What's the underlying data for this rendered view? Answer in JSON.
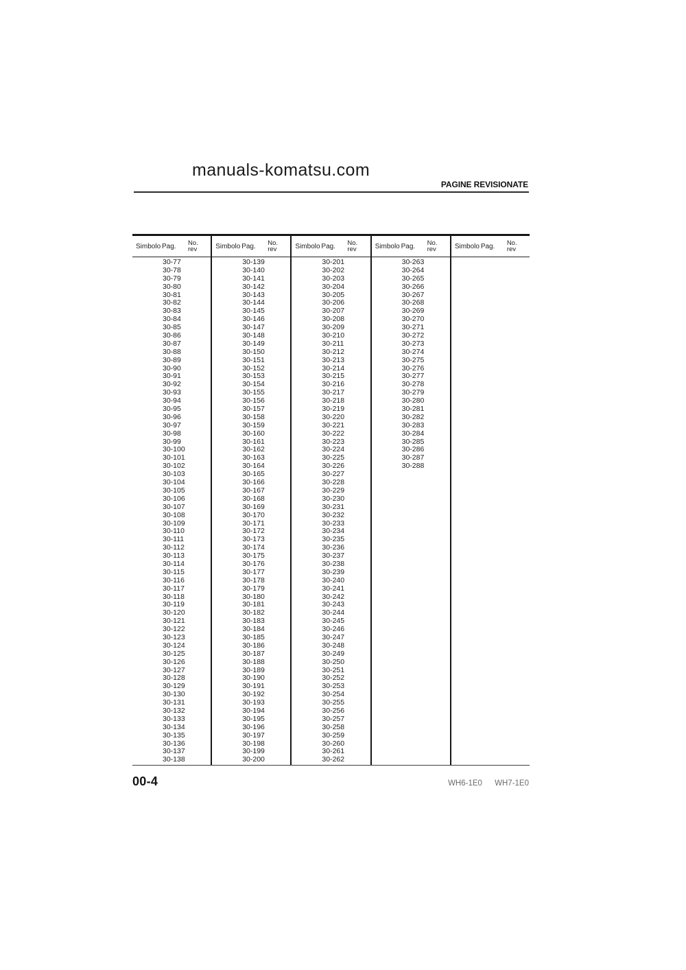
{
  "header": {
    "site_title": "manuals-komatsu.com",
    "page_title": "PAGINE REVISIONATE"
  },
  "table": {
    "headers": {
      "simbolo": "Simbolo",
      "pag": "Pag.",
      "no": "No.",
      "rev": "rev"
    },
    "columns": [
      {
        "pages": [
          "30-77",
          "30-78",
          "30-79",
          "30-80",
          "30-81",
          "30-82",
          "30-83",
          "30-84",
          "30-85",
          "30-86",
          "30-87",
          "30-88",
          "30-89",
          "30-90",
          "30-91",
          "30-92",
          "30-93",
          "30-94",
          "30-95",
          "30-96",
          "30-97",
          "30-98",
          "30-99",
          "30-100",
          "30-101",
          "30-102",
          "30-103",
          "30-104",
          "30-105",
          "30-106",
          "30-107",
          "30-108",
          "30-109",
          "30-110",
          "30-111",
          "30-112",
          "30-113",
          "30-114",
          "30-115",
          "30-116",
          "30-117",
          "30-118",
          "30-119",
          "30-120",
          "30-121",
          "30-122",
          "30-123",
          "30-124",
          "30-125",
          "30-126",
          "30-127",
          "30-128",
          "30-129",
          "30-130",
          "30-131",
          "30-132",
          "30-133",
          "30-134",
          "30-135",
          "30-136",
          "30-137",
          "30-138"
        ]
      },
      {
        "pages": [
          "30-139",
          "30-140",
          "30-141",
          "30-142",
          "30-143",
          "30-144",
          "30-145",
          "30-146",
          "30-147",
          "30-148",
          "30-149",
          "30-150",
          "30-151",
          "30-152",
          "30-153",
          "30-154",
          "30-155",
          "30-156",
          "30-157",
          "30-158",
          "30-159",
          "30-160",
          "30-161",
          "30-162",
          "30-163",
          "30-164",
          "30-165",
          "30-166",
          "30-167",
          "30-168",
          "30-169",
          "30-170",
          "30-171",
          "30-172",
          "30-173",
          "30-174",
          "30-175",
          "30-176",
          "30-177",
          "30-178",
          "30-179",
          "30-180",
          "30-181",
          "30-182",
          "30-183",
          "30-184",
          "30-185",
          "30-186",
          "30-187",
          "30-188",
          "30-189",
          "30-190",
          "30-191",
          "30-192",
          "30-193",
          "30-194",
          "30-195",
          "30-196",
          "30-197",
          "30-198",
          "30-199",
          "30-200"
        ]
      },
      {
        "pages": [
          "30-201",
          "30-202",
          "30-203",
          "30-204",
          "30-205",
          "30-206",
          "30-207",
          "30-208",
          "30-209",
          "30-210",
          "30-211",
          "30-212",
          "30-213",
          "30-214",
          "30-215",
          "30-216",
          "30-217",
          "30-218",
          "30-219",
          "30-220",
          "30-221",
          "30-222",
          "30-223",
          "30-224",
          "30-225",
          "30-226",
          "30-227",
          "30-228",
          "30-229",
          "30-230",
          "30-231",
          "30-232",
          "30-233",
          "30-234",
          "30-235",
          "30-236",
          "30-237",
          "30-238",
          "30-239",
          "30-240",
          "30-241",
          "30-242",
          "30-243",
          "30-244",
          "30-245",
          "30-246",
          "30-247",
          "30-248",
          "30-249",
          "30-250",
          "30-251",
          "30-252",
          "30-253",
          "30-254",
          "30-255",
          "30-256",
          "30-257",
          "30-258",
          "30-259",
          "30-260",
          "30-261",
          "30-262"
        ]
      },
      {
        "pages": [
          "30-263",
          "30-264",
          "30-265",
          "30-266",
          "30-267",
          "30-268",
          "30-269",
          "30-270",
          "30-271",
          "30-272",
          "30-273",
          "30-274",
          "30-275",
          "30-276",
          "30-277",
          "30-278",
          "30-279",
          "30-280",
          "30-281",
          "30-282",
          "30-283",
          "30-284",
          "30-285",
          "30-286",
          "30-287",
          "30-288"
        ]
      },
      {
        "pages": []
      }
    ]
  },
  "footer": {
    "page_number": "00-4",
    "models": [
      "WH6-1E0",
      "WH7-1E0"
    ]
  }
}
